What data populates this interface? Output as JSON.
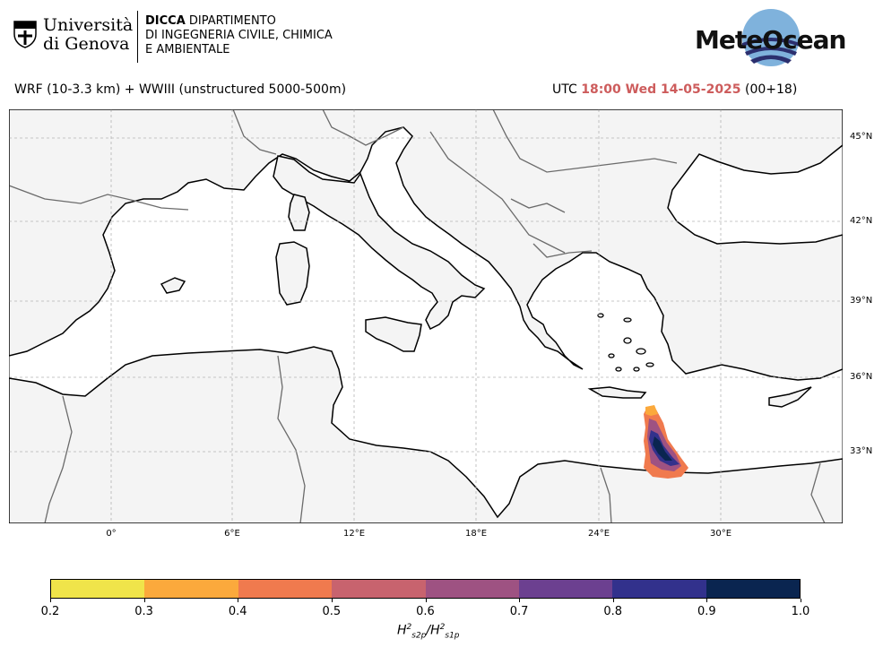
{
  "header": {
    "unige_line1": "Università",
    "unige_line2": "di Genova",
    "dicca_bold": "DICCA",
    "dicca_line1_rest": " DIPARTIMENTO",
    "dicca_line2": "DI INGEGNERIA CIVILE, CHIMICA",
    "dicca_line3": "E AMBIENTALE",
    "meteo_logo": "MeteOcean"
  },
  "title": {
    "model": "WRF (10-3.3 km) + WWIII (unstructured 5000-500m)",
    "utc_prefix": "UTC",
    "time": "18:00 Wed 14-05-2025",
    "lead": "(00+18)"
  },
  "map": {
    "lat_labels": [
      "45°N",
      "42°N",
      "39°N",
      "36°N",
      "33°N"
    ],
    "lon_labels": [
      "0°",
      "6°E",
      "12°E",
      "18°E",
      "24°E",
      "30°E"
    ],
    "land_color": "#f4f4f4",
    "sea_color": "#ffffff"
  },
  "colorbar": {
    "ticks": [
      "0.2",
      "0.3",
      "0.4",
      "0.5",
      "0.6",
      "0.7",
      "0.8",
      "0.9",
      "1.0"
    ],
    "colors": [
      "#f0e44a",
      "#fba93c",
      "#f07a4e",
      "#c8636e",
      "#9e5282",
      "#6c4090",
      "#32318c",
      "#0a2550"
    ],
    "label_main": "H",
    "label_sup1": "2",
    "label_sub1": "s2p",
    "label_sup2": "2",
    "label_sub2": "s1p"
  }
}
